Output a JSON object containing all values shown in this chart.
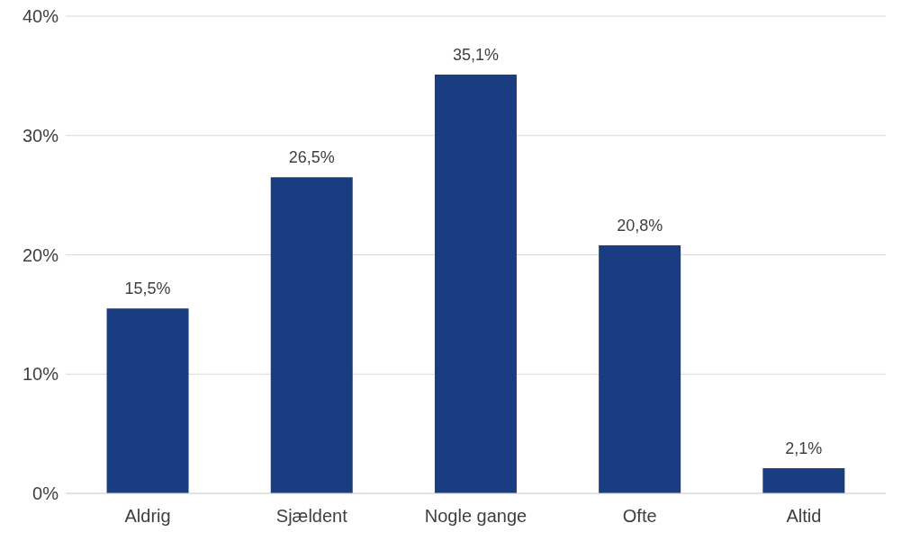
{
  "chart_data": {
    "type": "bar",
    "categories": [
      "Aldrig",
      "Sjældent",
      "Nogle gange",
      "Ofte",
      "Altid"
    ],
    "values": [
      15.5,
      26.5,
      35.1,
      20.8,
      2.1
    ],
    "value_labels": [
      "15,5%",
      "26,5%",
      "35,1%",
      "20,8%",
      "2,1%"
    ],
    "color": "#1a3c80",
    "ylim": [
      0,
      40
    ],
    "yticks": [
      {
        "value": 0,
        "label": "0%"
      },
      {
        "value": 10,
        "label": "10%"
      },
      {
        "value": 20,
        "label": "20%"
      },
      {
        "value": 30,
        "label": "30%"
      },
      {
        "value": 40,
        "label": "40%"
      }
    ],
    "grid": "y"
  }
}
